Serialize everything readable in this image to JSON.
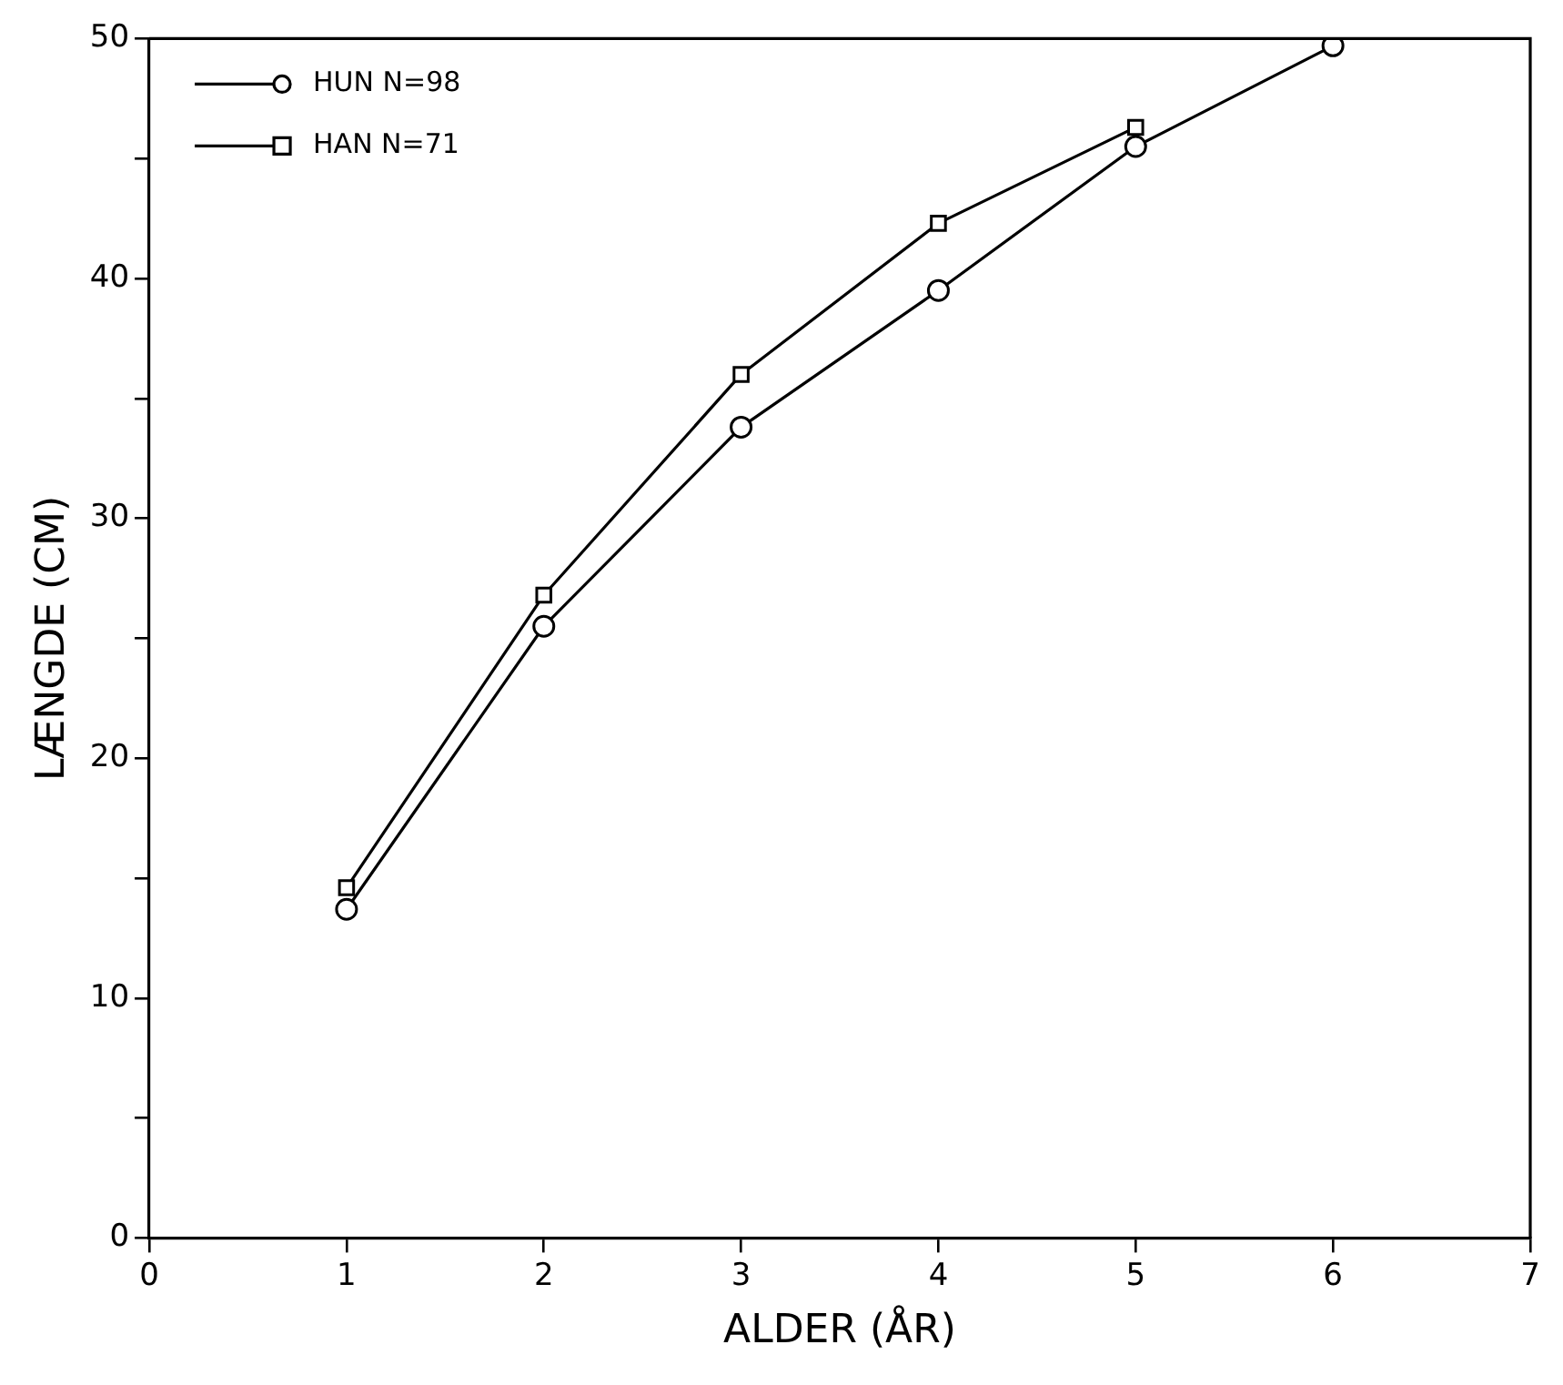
{
  "chart_data": {
    "type": "line",
    "xlabel": "ALDER (ÅR)",
    "ylabel": "LÆNGDE (CM)",
    "x": [
      1,
      2,
      3,
      4,
      5,
      6
    ],
    "series": [
      {
        "name": "HUN N=98",
        "color": "#000000",
        "marker": "circle",
        "values": [
          13.7,
          25.5,
          33.8,
          39.5,
          45.5,
          49.7
        ]
      },
      {
        "name": "HAN N=71",
        "color": "#000000",
        "marker": "square",
        "values": [
          14.6,
          26.8,
          36.0,
          42.3,
          46.3,
          null
        ]
      }
    ],
    "xlim": [
      0,
      7
    ],
    "xticks": [
      0,
      1,
      2,
      3,
      4,
      5,
      6,
      7
    ],
    "ylim": [
      0,
      50
    ],
    "yticks": [
      0,
      {
        "value": 5,
        "label": null
      },
      10,
      {
        "value": 15,
        "label": null
      },
      20,
      {
        "value": 25,
        "label": null
      },
      30,
      {
        "value": 35,
        "label": null
      },
      40,
      {
        "value": 45,
        "label": null
      },
      50
    ],
    "legend": "top left",
    "grid": false,
    "line_style": "solid"
  }
}
